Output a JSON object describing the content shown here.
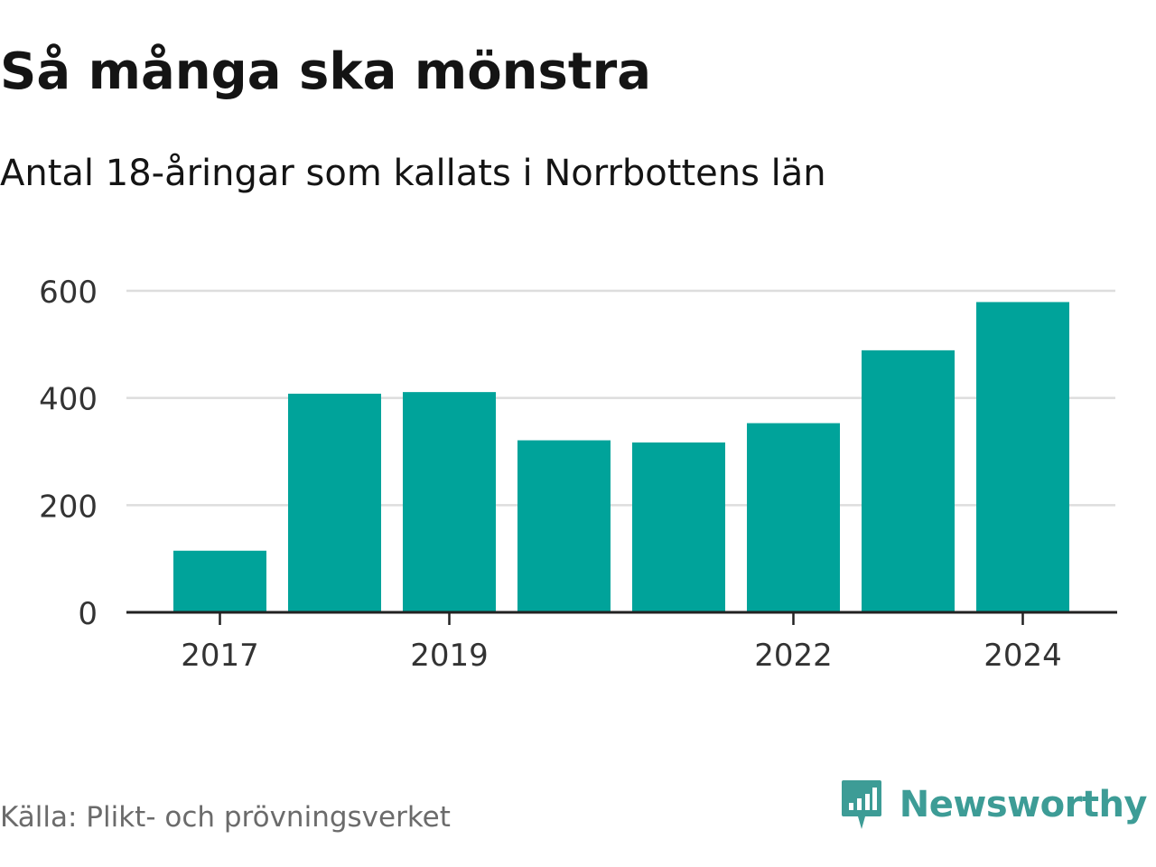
{
  "title": "Så många ska mönstra",
  "subtitle": "Antal 18-åringar som kallats i Norrbottens län",
  "source": "Källa: Plikt- och prövningsverket",
  "brand": {
    "name": "Newsworthy",
    "icon": "newsworthy-logo-icon",
    "color": "#3d9c96"
  },
  "colors": {
    "bar": "#00a39a",
    "grid": "#dddddd",
    "axis": "#222222",
    "text": "#333333"
  },
  "chart_data": {
    "type": "bar",
    "categories": [
      "2017",
      "2018",
      "2019",
      "2020",
      "2021",
      "2022",
      "2023",
      "2024"
    ],
    "values": [
      115,
      408,
      411,
      321,
      317,
      353,
      489,
      579
    ],
    "x_tick_labels": [
      "2017",
      "2019",
      "2022",
      "2024"
    ],
    "y_ticks": [
      0,
      200,
      400,
      600
    ],
    "ylim": [
      0,
      600
    ],
    "grid": true,
    "legend": false
  }
}
